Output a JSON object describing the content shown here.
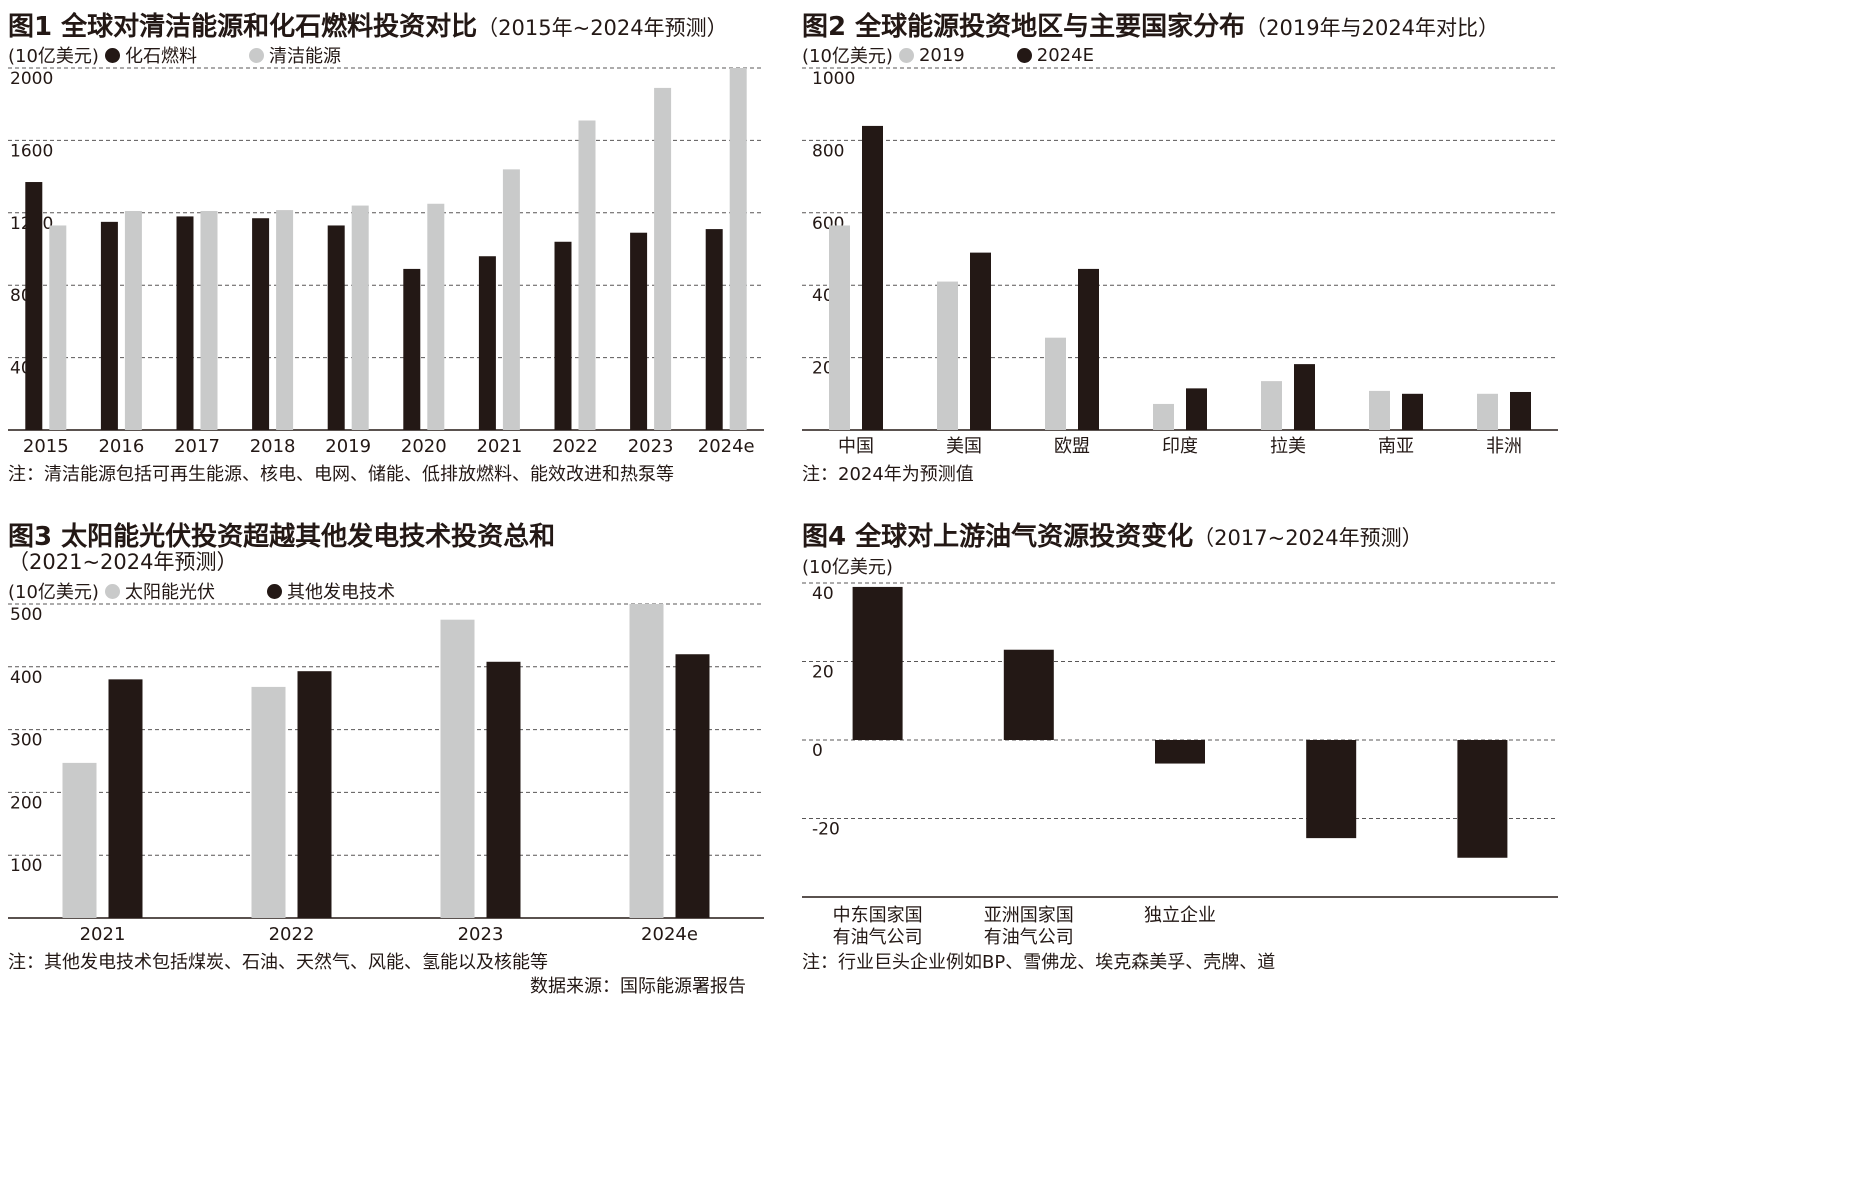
{
  "colors": {
    "dark": "#231815",
    "light": "#c9caca",
    "grid": "#595757"
  },
  "figures": [
    {
      "id": "fig1",
      "title": "图1 全球对清洁能源和化石燃料投资对比",
      "subtitle": "（2015年~2024年预测）",
      "unit": "(10亿美元)",
      "legend": [
        {
          "label": "化石燃料",
          "color": "#231815"
        },
        {
          "label": "清洁能源",
          "color": "#c9caca"
        }
      ],
      "note": "注：清洁能源包括可再生能源、核电、电网、储能、低排放燃料、能效改进和热泵等"
    },
    {
      "id": "fig2",
      "title": "图2 全球能源投资地区与主要国家分布",
      "subtitle": "（2019年与2024年对比）",
      "unit": "(10亿美元)",
      "legend": [
        {
          "label": "2019",
          "color": "#c9caca"
        },
        {
          "label": "2024E",
          "color": "#231815"
        }
      ],
      "note": "注：2024年为预测值"
    },
    {
      "id": "fig3",
      "title": "图3 太阳能光伏投资超越其他发电技术投资总和",
      "subtitle": "（2021~2024年预测）",
      "unit": "(10亿美元)",
      "legend": [
        {
          "label": "太阳能光伏",
          "color": "#c9caca"
        },
        {
          "label": "其他发电技术",
          "color": "#231815"
        }
      ],
      "note": "注：其他发电技术包括煤炭、石油、天然气、风能、氢能以及核能等",
      "source": "数据来源：国际能源署报告"
    },
    {
      "id": "fig4",
      "title": "图4 全球对上游油气资源投资变化",
      "subtitle": "（2017~2024年预测）",
      "unit": "(10亿美元)",
      "legend": [],
      "note": "注：行业巨头企业例如BP、雪佛龙、埃克森美孚、壳牌、道"
    }
  ],
  "chart_data": [
    {
      "type": "bar",
      "categories": [
        "2015",
        "2016",
        "2017",
        "2018",
        "2019",
        "2020",
        "2021",
        "2022",
        "2023",
        "2024e"
      ],
      "series": [
        {
          "name": "化石燃料",
          "color": "#231815",
          "values": [
            1370,
            1150,
            1180,
            1170,
            1130,
            890,
            960,
            1040,
            1090,
            1110
          ]
        },
        {
          "name": "清洁能源",
          "color": "#c9caca",
          "values": [
            1130,
            1210,
            1210,
            1215,
            1240,
            1250,
            1440,
            1710,
            1890,
            2000
          ]
        }
      ],
      "yticks": [
        400,
        800,
        1200,
        1600,
        2000
      ],
      "ylim": [
        0,
        2000
      ],
      "grid": true
    },
    {
      "type": "bar",
      "categories": [
        "中国",
        "美国",
        "欧盟",
        "印度",
        "拉美",
        "南亚",
        "非洲"
      ],
      "series": [
        {
          "name": "2019",
          "color": "#c9caca",
          "values": [
            565,
            410,
            255,
            72,
            135,
            108,
            100
          ]
        },
        {
          "name": "2024E",
          "color": "#231815",
          "values": [
            840,
            490,
            445,
            115,
            182,
            100,
            105
          ]
        }
      ],
      "yticks": [
        200,
        400,
        600,
        800,
        1000
      ],
      "ylim": [
        0,
        1000
      ],
      "grid": true
    },
    {
      "type": "bar",
      "categories": [
        "2021",
        "2022",
        "2023",
        "2024e"
      ],
      "series": [
        {
          "name": "太阳能光伏",
          "color": "#c9caca",
          "values": [
            247,
            368,
            475,
            500
          ]
        },
        {
          "name": "其他发电技术",
          "color": "#231815",
          "values": [
            380,
            393,
            408,
            420
          ]
        }
      ],
      "yticks": [
        100,
        200,
        300,
        400,
        500
      ],
      "ylim": [
        0,
        500
      ],
      "grid": true
    },
    {
      "type": "bar",
      "categories": [
        "中东国家国\n有油气公司",
        "亚洲国家国\n有油气公司",
        "独立企业",
        "",
        ""
      ],
      "series": [
        {
          "name": "",
          "color": "#231815",
          "values": [
            39,
            23,
            -6,
            -25,
            -30
          ]
        }
      ],
      "yticks": [
        -20,
        0,
        20,
        40
      ],
      "ylim": [
        -40,
        40
      ],
      "grid": true
    }
  ]
}
